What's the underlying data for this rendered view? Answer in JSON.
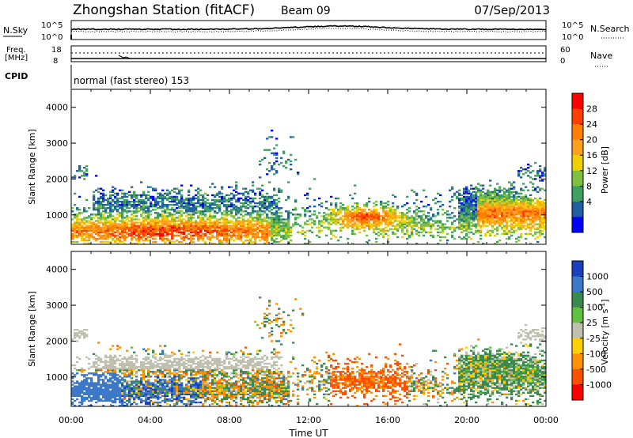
{
  "header": {
    "title": "Zhongshan Station (fitACF)",
    "beam": "Beam 09",
    "date": "07/Sep/2013"
  },
  "top_panels": {
    "nsky_label": "N.Sky",
    "nsky_ticks": [
      "10^5",
      "10^0"
    ],
    "nsearch_label": "N.Search",
    "nsearch_ticks": [
      "10^5",
      "10^0"
    ],
    "freq_label": "Freq.",
    "freq_unit": "[MHz]",
    "freq_ticks": [
      "18",
      "8"
    ],
    "nave_label": "Nave",
    "nave_ticks": [
      "60",
      "0"
    ],
    "cpid_label": "CPID",
    "cpid_value": "normal (fast stereo) 153"
  },
  "chart_data": [
    {
      "type": "heatmap",
      "name": "power",
      "ylabel": "Slant Range [km]",
      "ylim": [
        180,
        4500
      ],
      "yticks": [
        1000,
        2000,
        3000,
        4000
      ],
      "colorbar_label": "Power [dB]",
      "colorbar_ticks": [
        "28",
        "24",
        "20",
        "16",
        "12",
        "8",
        "4"
      ],
      "colorbar_colors": [
        "#ff0000",
        "#ff4000",
        "#ff8000",
        "#ffa020",
        "#f0d000",
        "#80c040",
        "#40a060",
        "#2060a0",
        "#0000ff"
      ]
    },
    {
      "type": "heatmap",
      "name": "velocity",
      "ylabel": "Slant Range [km]",
      "ylim": [
        180,
        4500
      ],
      "yticks": [
        1000,
        2000,
        3000,
        4000
      ],
      "colorbar_label": "Velocity [m s^-1]",
      "colorbar_ticks": [
        "1000",
        "500",
        "100",
        "25",
        "-25",
        "-100",
        "-500",
        "-1000"
      ],
      "colorbar_colors": [
        "#1a3fbf",
        "#3c78c8",
        "#3a8a50",
        "#60c040",
        "#c0c0b0",
        "#ffd000",
        "#ff9000",
        "#ff5000",
        "#ff0000"
      ],
      "xlabel": "Time UT",
      "xticks": [
        "00:00",
        "04:00",
        "08:00",
        "12:00",
        "16:00",
        "20:00",
        "00:00"
      ]
    }
  ]
}
